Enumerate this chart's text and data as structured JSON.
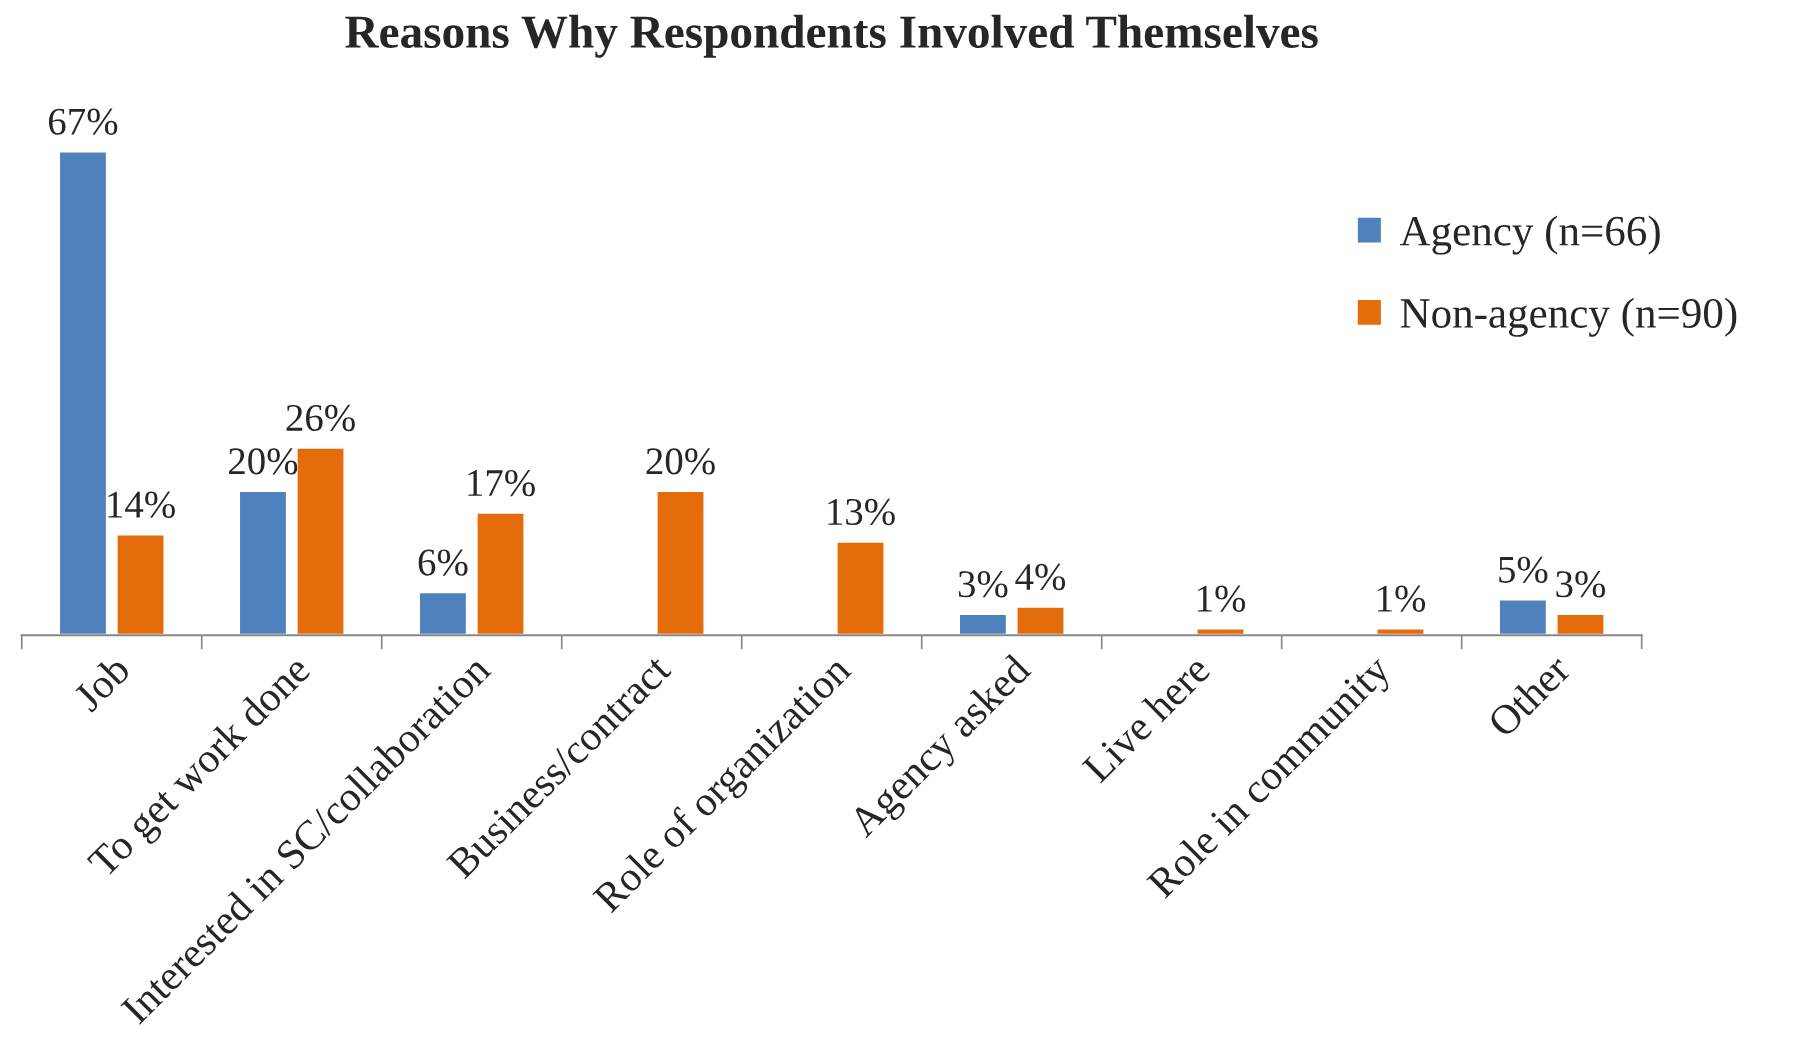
{
  "chart_data": {
    "type": "bar",
    "title": "Reasons Why Respondents Involved Themselves",
    "categories": [
      "Job",
      "To get work done",
      "Interested in SC/collaboration",
      "Business/contract",
      "Role of organization",
      "Agency asked",
      "Live here",
      "Role in community",
      "Other"
    ],
    "series": [
      {
        "name": "Agency (n=66)",
        "color": "#4f81bd",
        "values": [
          67,
          20,
          6,
          null,
          null,
          3,
          null,
          null,
          5
        ],
        "value_labels": [
          "67%",
          "20%",
          "6%",
          null,
          null,
          "3%",
          null,
          null,
          "5%"
        ]
      },
      {
        "name": "Non-agency (n=90)",
        "color": "#e46c0a",
        "values": [
          14,
          26,
          17,
          20,
          13,
          4,
          1,
          1,
          3
        ],
        "value_labels": [
          "14%",
          "26%",
          "17%",
          "20%",
          "13%",
          "4%",
          "1%",
          "1%",
          "3%"
        ]
      }
    ],
    "legend": "right"
  }
}
